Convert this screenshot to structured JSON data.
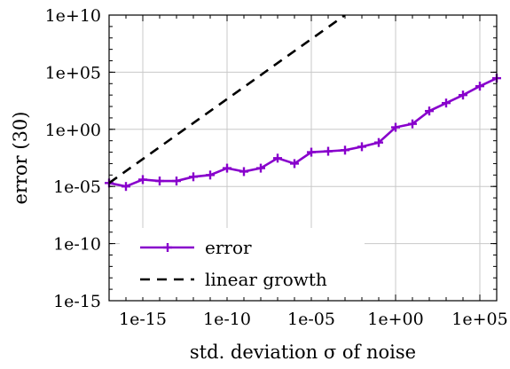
{
  "chart_data": {
    "type": "line",
    "xlabel": "std. deviation σ of noise",
    "ylabel": "error (30)",
    "x_scale": "log",
    "y_scale": "log",
    "xlim": [
      1e-17,
      1000000.0
    ],
    "ylim": [
      1e-15,
      10000000000.0
    ],
    "x_ticks": [
      1e-15,
      1e-10,
      1e-05,
      1,
      100000.0
    ],
    "x_tick_labels": [
      "1e-15",
      "1e-10",
      "1e-05",
      "1e+00",
      "1e+05"
    ],
    "y_ticks": [
      1e-15,
      1e-10,
      1e-05,
      1,
      100000.0,
      10000000000.0
    ],
    "y_tick_labels": [
      "1e-15",
      "1e-10",
      "1e-05",
      "1e+00",
      "1e+05",
      "1e+10"
    ],
    "grid": true,
    "legend_position": "bottom-left",
    "series": [
      {
        "name": "error",
        "color": "#8800cc",
        "style": "solid",
        "marker": "plus",
        "x": [
          1e-17,
          1e-16,
          1e-15,
          1e-14,
          1e-13,
          1e-12,
          1e-11,
          1e-10,
          1e-09,
          1e-08,
          1e-07,
          1e-06,
          1e-05,
          0.0001,
          0.001,
          0.01,
          0.1,
          1,
          10,
          100,
          1000,
          10000,
          100000,
          1000000
        ],
        "y": [
          2e-05,
          1e-05,
          4e-05,
          3e-05,
          3e-05,
          7e-05,
          0.0001,
          0.0004,
          0.0002,
          0.0004,
          0.003,
          0.001,
          0.01,
          0.012,
          0.015,
          0.03,
          0.07,
          1.5,
          3,
          40,
          200,
          1000,
          6000,
          30000
        ]
      },
      {
        "name": "linear growth",
        "color": "#000000",
        "style": "dashed",
        "x": [
          1e-17,
          0.001
        ],
        "y": [
          2e-05,
          10000000000.0
        ]
      }
    ]
  }
}
